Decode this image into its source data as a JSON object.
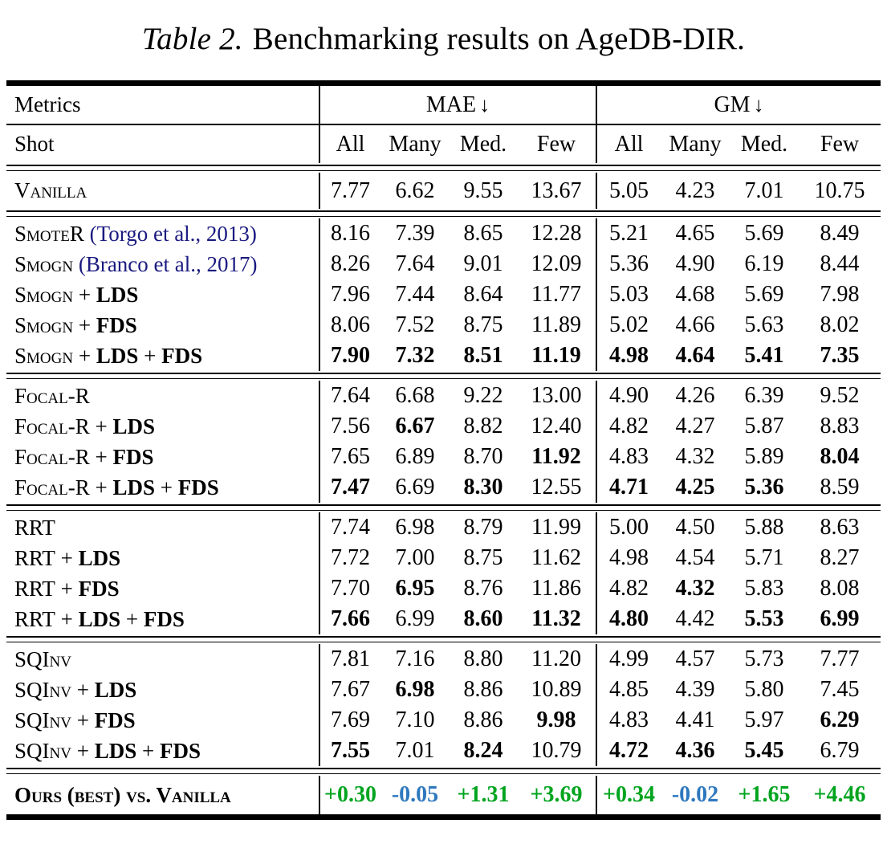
{
  "caption": {
    "label": "Table 2.",
    "text": "Benchmarking results on AgeDB-DIR."
  },
  "colors": {
    "positive": "#00A41E",
    "negative": "#2E78BE",
    "citation": "#1A1A80"
  },
  "header": {
    "metrics_label": "Metrics",
    "groups": [
      {
        "label": "MAE",
        "arrow": "↓"
      },
      {
        "label": "GM",
        "arrow": "↓"
      }
    ],
    "shot_label": "Shot",
    "shot_columns": [
      "All",
      "Many",
      "Med.",
      "Few",
      "All",
      "Many",
      "Med.",
      "Few"
    ]
  },
  "sections": [
    {
      "rows": [
        {
          "name": "Vanilla",
          "values": [
            "7.77",
            "6.62",
            "9.55",
            "13.67",
            "5.05",
            "4.23",
            "7.01",
            "10.75"
          ],
          "bold": [
            0,
            0,
            0,
            0,
            0,
            0,
            0,
            0
          ]
        }
      ]
    },
    {
      "rows": [
        {
          "name": "SmoteR",
          "citation": "(Torgo et al., 2013)",
          "values": [
            "8.16",
            "7.39",
            "8.65",
            "12.28",
            "5.21",
            "4.65",
            "5.69",
            "8.49"
          ],
          "bold": [
            0,
            0,
            0,
            0,
            0,
            0,
            0,
            0
          ]
        },
        {
          "name": "Smogn",
          "citation": "(Branco et al., 2017)",
          "values": [
            "8.26",
            "7.64",
            "9.01",
            "12.09",
            "5.36",
            "4.90",
            "6.19",
            "8.44"
          ],
          "bold": [
            0,
            0,
            0,
            0,
            0,
            0,
            0,
            0
          ]
        },
        {
          "name": "Smogn",
          "plus": [
            "LDS"
          ],
          "values": [
            "7.96",
            "7.44",
            "8.64",
            "11.77",
            "5.03",
            "4.68",
            "5.69",
            "7.98"
          ],
          "bold": [
            0,
            0,
            0,
            0,
            0,
            0,
            0,
            0
          ]
        },
        {
          "name": "Smogn",
          "plus": [
            "FDS"
          ],
          "values": [
            "8.06",
            "7.52",
            "8.75",
            "11.89",
            "5.02",
            "4.66",
            "5.63",
            "8.02"
          ],
          "bold": [
            0,
            0,
            0,
            0,
            0,
            0,
            0,
            0
          ]
        },
        {
          "name": "Smogn",
          "plus": [
            "LDS",
            "FDS"
          ],
          "values": [
            "7.90",
            "7.32",
            "8.51",
            "11.19",
            "4.98",
            "4.64",
            "5.41",
            "7.35"
          ],
          "bold": [
            1,
            1,
            1,
            1,
            1,
            1,
            1,
            1
          ]
        }
      ]
    },
    {
      "rows": [
        {
          "name": "Focal-R",
          "values": [
            "7.64",
            "6.68",
            "9.22",
            "13.00",
            "4.90",
            "4.26",
            "6.39",
            "9.52"
          ],
          "bold": [
            0,
            0,
            0,
            0,
            0,
            0,
            0,
            0
          ]
        },
        {
          "name": "Focal-R",
          "plus": [
            "LDS"
          ],
          "values": [
            "7.56",
            "6.67",
            "8.82",
            "12.40",
            "4.82",
            "4.27",
            "5.87",
            "8.83"
          ],
          "bold": [
            0,
            1,
            0,
            0,
            0,
            0,
            0,
            0
          ]
        },
        {
          "name": "Focal-R",
          "plus": [
            "FDS"
          ],
          "values": [
            "7.65",
            "6.89",
            "8.70",
            "11.92",
            "4.83",
            "4.32",
            "5.89",
            "8.04"
          ],
          "bold": [
            0,
            0,
            0,
            1,
            0,
            0,
            0,
            1
          ]
        },
        {
          "name": "Focal-R",
          "plus": [
            "LDS",
            "FDS"
          ],
          "values": [
            "7.47",
            "6.69",
            "8.30",
            "12.55",
            "4.71",
            "4.25",
            "5.36",
            "8.59"
          ],
          "bold": [
            1,
            0,
            1,
            0,
            1,
            1,
            1,
            0
          ]
        }
      ]
    },
    {
      "rows": [
        {
          "name": "RRT",
          "values": [
            "7.74",
            "6.98",
            "8.79",
            "11.99",
            "5.00",
            "4.50",
            "5.88",
            "8.63"
          ],
          "bold": [
            0,
            0,
            0,
            0,
            0,
            0,
            0,
            0
          ]
        },
        {
          "name": "RRT",
          "plus": [
            "LDS"
          ],
          "values": [
            "7.72",
            "7.00",
            "8.75",
            "11.62",
            "4.98",
            "4.54",
            "5.71",
            "8.27"
          ],
          "bold": [
            0,
            0,
            0,
            0,
            0,
            0,
            0,
            0
          ]
        },
        {
          "name": "RRT",
          "plus": [
            "FDS"
          ],
          "values": [
            "7.70",
            "6.95",
            "8.76",
            "11.86",
            "4.82",
            "4.32",
            "5.83",
            "8.08"
          ],
          "bold": [
            0,
            1,
            0,
            0,
            0,
            1,
            0,
            0
          ]
        },
        {
          "name": "RRT",
          "plus": [
            "LDS",
            "FDS"
          ],
          "values": [
            "7.66",
            "6.99",
            "8.60",
            "11.32",
            "4.80",
            "4.42",
            "5.53",
            "6.99"
          ],
          "bold": [
            1,
            0,
            1,
            1,
            1,
            0,
            1,
            1
          ]
        }
      ]
    },
    {
      "rows": [
        {
          "name": "SQInv",
          "values": [
            "7.81",
            "7.16",
            "8.80",
            "11.20",
            "4.99",
            "4.57",
            "5.73",
            "7.77"
          ],
          "bold": [
            0,
            0,
            0,
            0,
            0,
            0,
            0,
            0
          ]
        },
        {
          "name": "SQInv",
          "plus": [
            "LDS"
          ],
          "values": [
            "7.67",
            "6.98",
            "8.86",
            "10.89",
            "4.85",
            "4.39",
            "5.80",
            "7.45"
          ],
          "bold": [
            0,
            1,
            0,
            0,
            0,
            0,
            0,
            0
          ]
        },
        {
          "name": "SQInv",
          "plus": [
            "FDS"
          ],
          "values": [
            "7.69",
            "7.10",
            "8.86",
            "9.98",
            "4.83",
            "4.41",
            "5.97",
            "6.29"
          ],
          "bold": [
            0,
            0,
            0,
            1,
            0,
            0,
            0,
            1
          ]
        },
        {
          "name": "SQInv",
          "plus": [
            "LDS",
            "FDS"
          ],
          "values": [
            "7.55",
            "7.01",
            "8.24",
            "10.79",
            "4.72",
            "4.36",
            "5.45",
            "6.79"
          ],
          "bold": [
            1,
            0,
            1,
            0,
            1,
            1,
            1,
            0
          ]
        }
      ]
    }
  ],
  "footer": {
    "label": "Ours (best) vs. Vanilla",
    "values": [
      {
        "v": "+0.30",
        "c": "pos"
      },
      {
        "v": "-0.05",
        "c": "neg"
      },
      {
        "v": "+1.31",
        "c": "pos"
      },
      {
        "v": "+3.69",
        "c": "pos"
      },
      {
        "v": "+0.34",
        "c": "pos"
      },
      {
        "v": "-0.02",
        "c": "neg"
      },
      {
        "v": "+1.65",
        "c": "pos"
      },
      {
        "v": "+4.46",
        "c": "pos"
      }
    ]
  }
}
